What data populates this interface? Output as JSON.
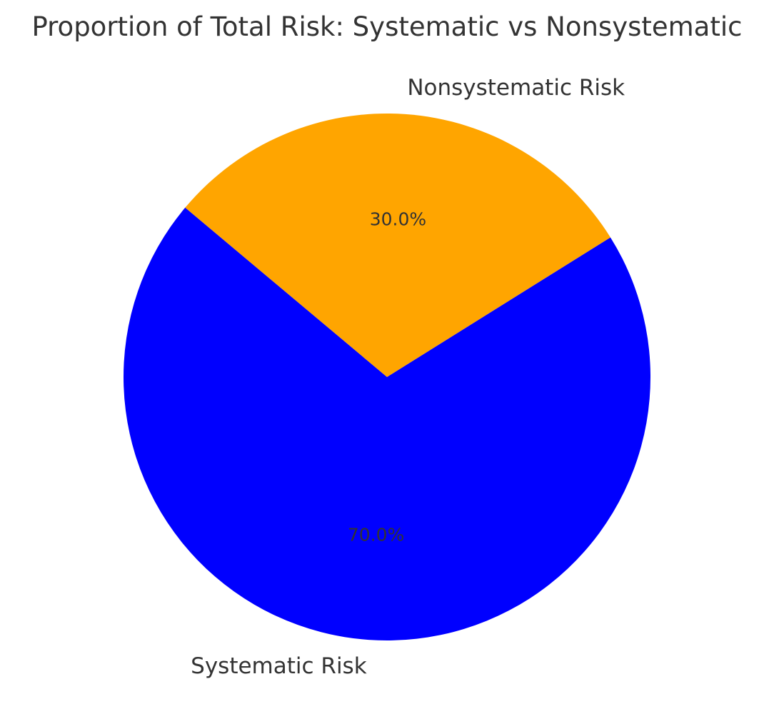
{
  "chart_data": {
    "type": "pie",
    "title": "Proportion of Total Risk: Systematic vs Nonsystematic",
    "slices": [
      {
        "label": "Systematic Risk",
        "value": 70,
        "pct_label": "70.0%",
        "color": "#0000ff"
      },
      {
        "label": "Nonsystematic Risk",
        "value": 30,
        "pct_label": "30.0%",
        "color": "#ffa500"
      }
    ],
    "start_angle_deg": 140,
    "direction": "counterclockwise",
    "legend": "none"
  }
}
